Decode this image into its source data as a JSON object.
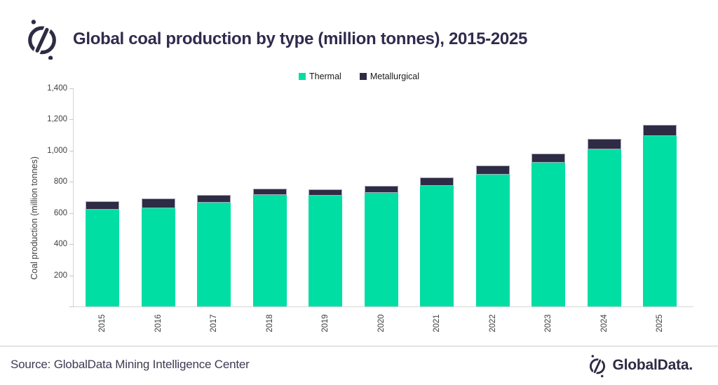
{
  "header": {
    "title": "Global coal production by type (million tonnes), 2015-2025"
  },
  "legend": {
    "items": [
      {
        "label": "Thermal",
        "color": "#00DEA3"
      },
      {
        "label": "Metallurgical",
        "color": "#2E2B44"
      }
    ]
  },
  "chart_data": {
    "type": "bar",
    "stacked": true,
    "title": "Global coal production by type (million tonnes), 2015-2025",
    "categories": [
      "2015",
      "2016",
      "2017",
      "2018",
      "2019",
      "2020",
      "2021",
      "2022",
      "2023",
      "2024",
      "2025"
    ],
    "series": [
      {
        "name": "Thermal",
        "color": "#00DEA3",
        "values": [
          620,
          630,
          668,
          715,
          710,
          730,
          775,
          845,
          925,
          1010,
          1095
        ]
      },
      {
        "name": "Metallurgical",
        "color": "#2E2B44",
        "values": [
          55,
          62,
          48,
          42,
          42,
          46,
          52,
          58,
          58,
          66,
          74
        ]
      }
    ],
    "totals": [
      675,
      692,
      716,
      757,
      752,
      776,
      827,
      903,
      983,
      1076,
      1169
    ],
    "xlabel": "",
    "ylabel": "Coal production (million tonnes)",
    "ylim": [
      0,
      1400
    ],
    "y_ticks": [
      {
        "label": "1,400",
        "value": 1400
      },
      {
        "label": "1,200",
        "value": 1200
      },
      {
        "label": "1,000",
        "value": 1000
      },
      {
        "label": "800",
        "value": 800
      },
      {
        "label": "600",
        "value": 600
      },
      {
        "label": "400",
        "value": 400
      },
      {
        "label": "200",
        "value": 200
      },
      {
        "label": "",
        "value": 0
      }
    ],
    "grid": false,
    "legend_position": "top-center"
  },
  "footer": {
    "source": "Source: GlobalData Mining Intelligence Center",
    "brand_wordmark": "GlobalData."
  }
}
